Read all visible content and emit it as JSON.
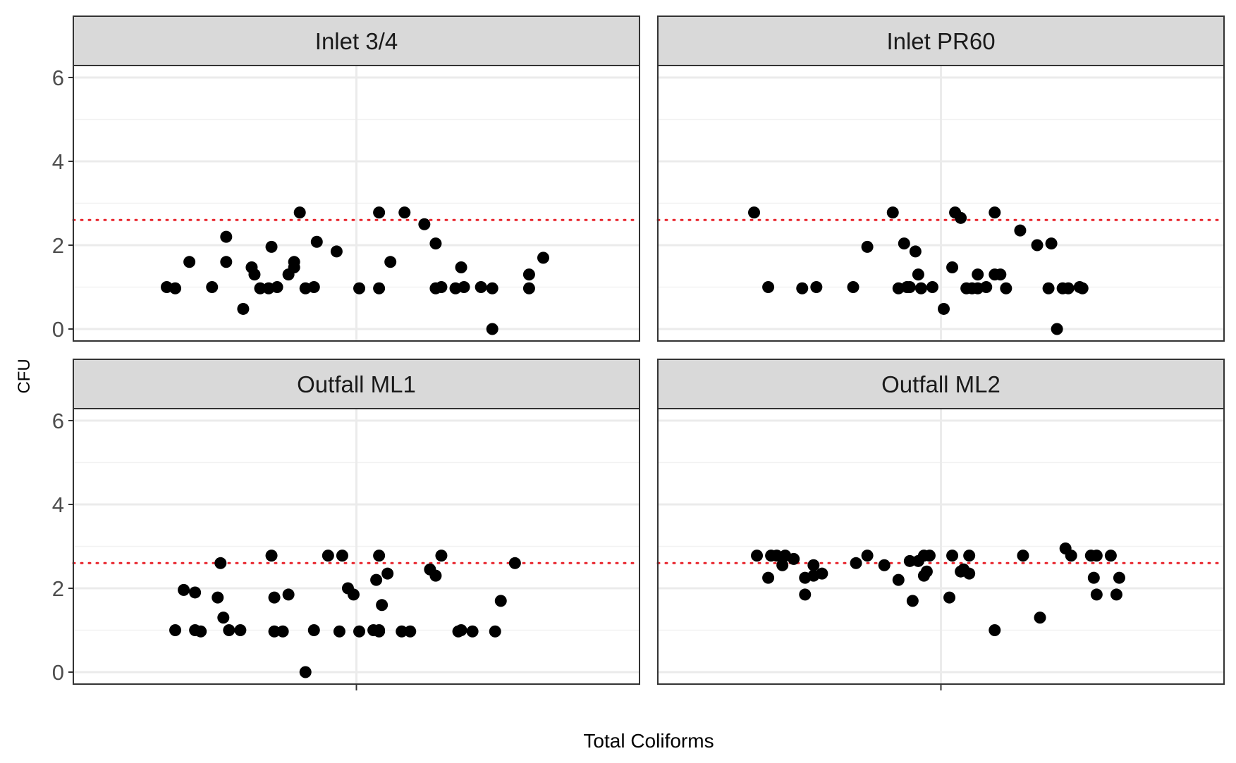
{
  "chart_data": {
    "type": "scatter",
    "facet_layout": "2x2",
    "xlabel": "Total Coliforms",
    "ylabel": "CFU",
    "ylim": [
      -0.25,
      6.3
    ],
    "yticks": [
      0,
      2,
      4,
      6
    ],
    "y_minor_gridlines": [
      1,
      3,
      5
    ],
    "reference_line": {
      "y": 2.6,
      "style": "dotted",
      "color": "#e8222a"
    },
    "x_axis": "categorical, single tick, no tick labels (points jittered)",
    "colors": {
      "points": "#000000",
      "strip": "#d9d9d9",
      "grid": "#ebebeb"
    },
    "panels": [
      {
        "name": "Inlet 3/4",
        "points": [
          [
            -0.67,
            1.0
          ],
          [
            -0.64,
            0.97
          ],
          [
            -0.59,
            1.6
          ],
          [
            -0.51,
            1.0
          ],
          [
            -0.46,
            2.2
          ],
          [
            -0.46,
            1.6
          ],
          [
            -0.4,
            0.48
          ],
          [
            -0.37,
            1.47
          ],
          [
            -0.36,
            1.3
          ],
          [
            -0.34,
            0.97
          ],
          [
            -0.31,
            0.97
          ],
          [
            -0.3,
            1.96
          ],
          [
            -0.28,
            1.0
          ],
          [
            -0.24,
            1.3
          ],
          [
            -0.22,
            1.6
          ],
          [
            -0.22,
            1.47
          ],
          [
            -0.2,
            2.78
          ],
          [
            -0.18,
            0.97
          ],
          [
            -0.15,
            1.0
          ],
          [
            -0.14,
            2.08
          ],
          [
            -0.07,
            1.85
          ],
          [
            0.01,
            0.97
          ],
          [
            0.08,
            2.78
          ],
          [
            0.08,
            0.97
          ],
          [
            0.12,
            1.6
          ],
          [
            0.17,
            2.78
          ],
          [
            0.24,
            2.5
          ],
          [
            0.28,
            2.04
          ],
          [
            0.28,
            0.97
          ],
          [
            0.3,
            1.0
          ],
          [
            0.35,
            0.97
          ],
          [
            0.37,
            1.47
          ],
          [
            0.38,
            1.0
          ],
          [
            0.44,
            1.0
          ],
          [
            0.48,
            0.97
          ],
          [
            0.48,
            0.0
          ],
          [
            0.61,
            1.3
          ],
          [
            0.61,
            0.97
          ],
          [
            0.66,
            1.7
          ]
        ]
      },
      {
        "name": "Inlet PR60",
        "points": [
          [
            -0.66,
            2.78
          ],
          [
            -0.61,
            1.0
          ],
          [
            -0.49,
            0.97
          ],
          [
            -0.44,
            1.0
          ],
          [
            -0.31,
            1.0
          ],
          [
            -0.26,
            1.96
          ],
          [
            -0.17,
            2.78
          ],
          [
            -0.15,
            0.97
          ],
          [
            -0.13,
            2.04
          ],
          [
            -0.12,
            1.0
          ],
          [
            -0.11,
            1.0
          ],
          [
            -0.09,
            1.85
          ],
          [
            -0.08,
            1.3
          ],
          [
            -0.07,
            0.97
          ],
          [
            -0.03,
            1.0
          ],
          [
            0.01,
            0.48
          ],
          [
            0.04,
            1.47
          ],
          [
            0.05,
            2.78
          ],
          [
            0.07,
            2.65
          ],
          [
            0.09,
            0.97
          ],
          [
            0.11,
            0.97
          ],
          [
            0.13,
            1.3
          ],
          [
            0.13,
            0.97
          ],
          [
            0.16,
            1.0
          ],
          [
            0.19,
            1.3
          ],
          [
            0.19,
            2.78
          ],
          [
            0.21,
            1.3
          ],
          [
            0.23,
            0.97
          ],
          [
            0.28,
            2.35
          ],
          [
            0.34,
            2.0
          ],
          [
            0.38,
            0.97
          ],
          [
            0.39,
            2.04
          ],
          [
            0.41,
            0.0
          ],
          [
            0.43,
            0.97
          ],
          [
            0.45,
            0.97
          ],
          [
            0.49,
            1.0
          ],
          [
            0.5,
            0.97
          ]
        ]
      },
      {
        "name": "Outfall ML1",
        "points": [
          [
            -0.64,
            1.0
          ],
          [
            -0.61,
            1.96
          ],
          [
            -0.57,
            1.0
          ],
          [
            -0.57,
            1.9
          ],
          [
            -0.55,
            0.97
          ],
          [
            -0.49,
            1.78
          ],
          [
            -0.48,
            2.6
          ],
          [
            -0.47,
            1.3
          ],
          [
            -0.45,
            1.0
          ],
          [
            -0.41,
            1.0
          ],
          [
            -0.3,
            2.78
          ],
          [
            -0.29,
            1.78
          ],
          [
            -0.29,
            0.97
          ],
          [
            -0.26,
            0.97
          ],
          [
            -0.24,
            1.85
          ],
          [
            -0.18,
            0.0
          ],
          [
            -0.15,
            1.0
          ],
          [
            -0.1,
            2.78
          ],
          [
            -0.06,
            0.97
          ],
          [
            -0.05,
            2.78
          ],
          [
            -0.03,
            2.0
          ],
          [
            -0.01,
            1.85
          ],
          [
            0.01,
            0.97
          ],
          [
            0.06,
            1.0
          ],
          [
            0.07,
            2.2
          ],
          [
            0.08,
            1.0
          ],
          [
            0.08,
            2.78
          ],
          [
            0.08,
            0.97
          ],
          [
            0.09,
            1.6
          ],
          [
            0.11,
            2.35
          ],
          [
            0.16,
            0.97
          ],
          [
            0.19,
            0.97
          ],
          [
            0.26,
            2.45
          ],
          [
            0.28,
            2.3
          ],
          [
            0.3,
            2.78
          ],
          [
            0.36,
            0.97
          ],
          [
            0.37,
            1.0
          ],
          [
            0.41,
            0.97
          ],
          [
            0.49,
            0.97
          ],
          [
            0.51,
            1.7
          ],
          [
            0.56,
            2.6
          ]
        ]
      },
      {
        "name": "Outfall ML2",
        "points": [
          [
            -0.65,
            2.78
          ],
          [
            -0.61,
            2.25
          ],
          [
            -0.6,
            2.78
          ],
          [
            -0.58,
            2.78
          ],
          [
            -0.56,
            2.55
          ],
          [
            -0.55,
            2.78
          ],
          [
            -0.52,
            2.7
          ],
          [
            -0.48,
            2.25
          ],
          [
            -0.48,
            1.85
          ],
          [
            -0.45,
            2.55
          ],
          [
            -0.45,
            2.3
          ],
          [
            -0.42,
            2.35
          ],
          [
            -0.3,
            2.6
          ],
          [
            -0.26,
            2.78
          ],
          [
            -0.2,
            2.55
          ],
          [
            -0.15,
            2.2
          ],
          [
            -0.11,
            2.65
          ],
          [
            -0.1,
            1.7
          ],
          [
            -0.08,
            2.65
          ],
          [
            -0.06,
            2.3
          ],
          [
            -0.06,
            2.78
          ],
          [
            -0.05,
            2.4
          ],
          [
            -0.04,
            2.78
          ],
          [
            0.03,
            1.78
          ],
          [
            0.04,
            2.78
          ],
          [
            0.07,
            2.4
          ],
          [
            0.08,
            2.45
          ],
          [
            0.1,
            2.78
          ],
          [
            0.1,
            2.35
          ],
          [
            0.19,
            1.0
          ],
          [
            0.29,
            2.78
          ],
          [
            0.35,
            1.3
          ],
          [
            0.44,
            2.95
          ],
          [
            0.46,
            2.78
          ],
          [
            0.53,
            2.78
          ],
          [
            0.54,
            2.25
          ],
          [
            0.55,
            2.78
          ],
          [
            0.55,
            1.85
          ],
          [
            0.6,
            2.78
          ],
          [
            0.62,
            1.85
          ],
          [
            0.63,
            2.25
          ]
        ]
      }
    ]
  }
}
